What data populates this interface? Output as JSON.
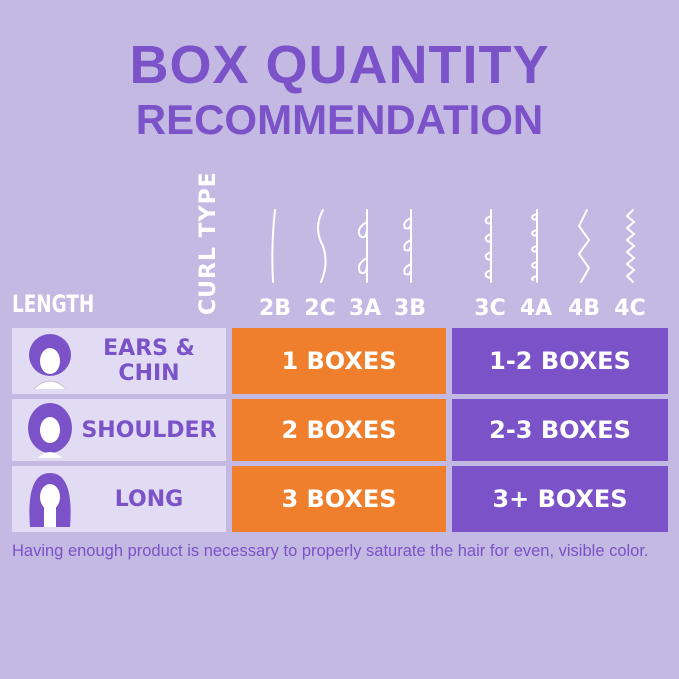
{
  "title": {
    "line1": "BOX QUANTITY",
    "line2": "RECOMMENDATION"
  },
  "headers": {
    "length": "LENGTH",
    "curl_type": "CURL TYPE"
  },
  "curl_types": [
    "2B",
    "2C",
    "3A",
    "3B",
    "3C",
    "4A",
    "4B",
    "4C"
  ],
  "rows": [
    {
      "length": "EARS & CHIN",
      "group1": "1 BOXES",
      "group2": "1-2 BOXES"
    },
    {
      "length": "SHOULDER",
      "group1": "2 BOXES",
      "group2": "2-3 BOXES"
    },
    {
      "length": "LONG",
      "group1": "3 BOXES",
      "group2": "3+ BOXES"
    }
  ],
  "footnote": "Having enough product is necessary to properly saturate the hair for even, visible color.",
  "colors": {
    "background": "#c3b9e3",
    "purple": "#7b52c7",
    "orange": "#ef7f2c",
    "label_bg": "#e1dbf3"
  }
}
